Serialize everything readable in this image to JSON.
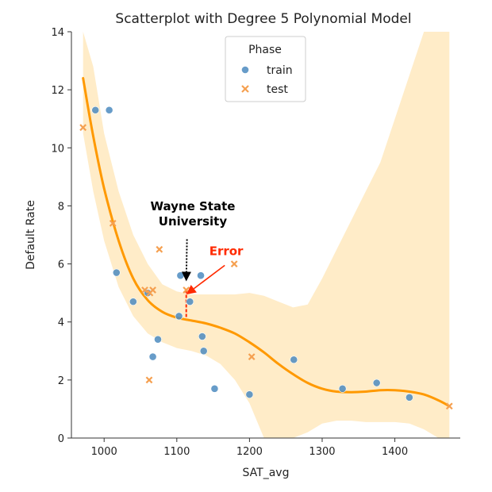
{
  "chart_data": {
    "type": "scatter",
    "title": "Scatterplot with Degree 5 Polynomial Model",
    "xlabel": "SAT_avg",
    "ylabel": "Default Rate",
    "xlim": [
      955,
      1490
    ],
    "ylim": [
      0,
      14
    ],
    "xticks": [
      "1000",
      "1100",
      "1200",
      "1300",
      "1400"
    ],
    "yticks": [
      "0",
      "2",
      "4",
      "6",
      "8",
      "10",
      "12",
      "14"
    ],
    "grid": false,
    "legend": {
      "title": "Phase",
      "position": "top-center",
      "entries": [
        "train",
        "test"
      ]
    },
    "colors": {
      "train": "#4c8bc0",
      "test": "#f5a050",
      "curve": "#ff9900",
      "band": "#ffecc8",
      "error": "#ff2a00",
      "annotation": "#000000"
    },
    "series": [
      {
        "name": "train",
        "marker": "circle",
        "x": [
          988,
          1007,
          1017,
          1040,
          1060,
          1067,
          1074,
          1103,
          1105,
          1118,
          1133,
          1135,
          1137,
          1152,
          1200,
          1261,
          1328,
          1375,
          1420
        ],
        "y": [
          11.3,
          11.3,
          5.7,
          4.7,
          5.0,
          2.8,
          3.4,
          4.2,
          5.6,
          4.7,
          5.6,
          3.5,
          3.0,
          1.7,
          1.5,
          2.7,
          1.7,
          1.9,
          1.4
        ]
      },
      {
        "name": "test",
        "marker": "x",
        "x": [
          971,
          1012,
          1056,
          1063,
          1067,
          1076,
          1113,
          1179,
          1203,
          1062,
          1475
        ],
        "y": [
          10.7,
          7.4,
          5.1,
          5.0,
          5.1,
          6.5,
          5.1,
          6.0,
          2.8,
          2.0,
          1.1
        ]
      }
    ],
    "model_curve": {
      "degree": 5,
      "x": [
        971,
        985,
        1000,
        1020,
        1040,
        1060,
        1080,
        1100,
        1120,
        1140,
        1160,
        1180,
        1200,
        1220,
        1240,
        1260,
        1280,
        1300,
        1320,
        1340,
        1360,
        1380,
        1400,
        1420,
        1440,
        1460,
        1475
      ],
      "y": [
        12.4,
        10.4,
        8.6,
        6.8,
        5.5,
        4.75,
        4.35,
        4.15,
        4.05,
        3.95,
        3.8,
        3.6,
        3.3,
        2.95,
        2.55,
        2.2,
        1.9,
        1.7,
        1.6,
        1.58,
        1.6,
        1.65,
        1.65,
        1.6,
        1.5,
        1.3,
        1.1
      ]
    },
    "confidence_band": {
      "x": [
        971,
        985,
        1000,
        1020,
        1040,
        1060,
        1080,
        1100,
        1120,
        1140,
        1160,
        1180,
        1200,
        1220,
        1240,
        1260,
        1280,
        1300,
        1320,
        1340,
        1360,
        1380,
        1400,
        1420,
        1440,
        1460,
        1475
      ],
      "lower": [
        10.5,
        8.5,
        6.8,
        5.2,
        4.2,
        3.6,
        3.3,
        3.1,
        3.0,
        2.85,
        2.55,
        2.0,
        1.2,
        0,
        0,
        0,
        0.2,
        0.5,
        0.6,
        0.6,
        0.55,
        0.55,
        0.55,
        0.5,
        0.3,
        0,
        0
      ],
      "upper": [
        14,
        12.8,
        10.5,
        8.5,
        7.0,
        6.0,
        5.3,
        5.05,
        4.95,
        4.95,
        4.95,
        4.95,
        5.0,
        4.9,
        4.7,
        4.5,
        4.6,
        5.5,
        6.5,
        7.5,
        8.5,
        9.5,
        11.0,
        12.5,
        14,
        14,
        14
      ]
    },
    "annotations": [
      {
        "text": "Wayne State\nUniversity",
        "color": "#000000",
        "label_x": 1122,
        "label_y": 7.85,
        "point_x": 1113,
        "point_y": 5.4
      },
      {
        "text": "Error",
        "color": "#ff2a00",
        "label_x": 1168,
        "label_y": 6.3,
        "point_x": 1113,
        "point_y": 4.95
      }
    ],
    "error_bar": {
      "x": 1113,
      "y_from": 5.1,
      "y_to": 4.15,
      "color": "#ff2a00"
    }
  }
}
